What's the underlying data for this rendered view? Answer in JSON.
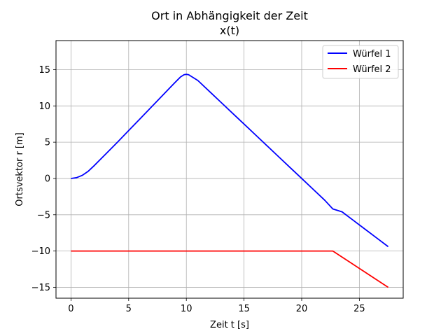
{
  "chart_data": {
    "type": "line",
    "title": "Ort in Abhängigkeit der Zeit",
    "subtitle": "x(t)",
    "xlabel": "Zeit t [s]",
    "ylabel": "Ortsvektor r [m]",
    "xlim": [
      -1.3,
      28.8
    ],
    "ylim": [
      -16.5,
      19.0
    ],
    "xticks": [
      0,
      5,
      10,
      15,
      20,
      25
    ],
    "yticks": [
      -15,
      -10,
      -5,
      0,
      5,
      10,
      15
    ],
    "xtick_labels": [
      "0",
      "5",
      "10",
      "15",
      "20",
      "25"
    ],
    "ytick_labels": [
      "−15",
      "−10",
      "−5",
      "0",
      "5",
      "10",
      "15"
    ],
    "grid": true,
    "legend_position": "top-right",
    "series": [
      {
        "name": "Würfel 1",
        "color": "#0000ff",
        "x": [
          0,
          0.5,
          1.0,
          1.5,
          2.0,
          2.5,
          3,
          4,
          5,
          6,
          7,
          8,
          9,
          9.5,
          9.8,
          10.0,
          10.2,
          10.5,
          11,
          12,
          13,
          14,
          15,
          16,
          17,
          18,
          19,
          20,
          21,
          22,
          22.7,
          23.5,
          24.5,
          25.5,
          26.5,
          27.5
        ],
        "y": [
          0,
          0.12,
          0.45,
          1.0,
          1.75,
          2.55,
          3.35,
          4.95,
          6.6,
          8.25,
          9.9,
          11.55,
          13.2,
          14.0,
          14.3,
          14.35,
          14.3,
          14.0,
          13.5,
          12.0,
          10.5,
          9.0,
          7.5,
          6.0,
          4.5,
          3.0,
          1.5,
          0.0,
          -1.5,
          -3.0,
          -4.2,
          -4.6,
          -5.8,
          -7.0,
          -8.2,
          -9.4
        ]
      },
      {
        "name": "Würfel 2",
        "color": "#ff0000",
        "x": [
          0,
          22.7,
          27.5
        ],
        "y": [
          -10,
          -10,
          -15
        ]
      }
    ]
  }
}
